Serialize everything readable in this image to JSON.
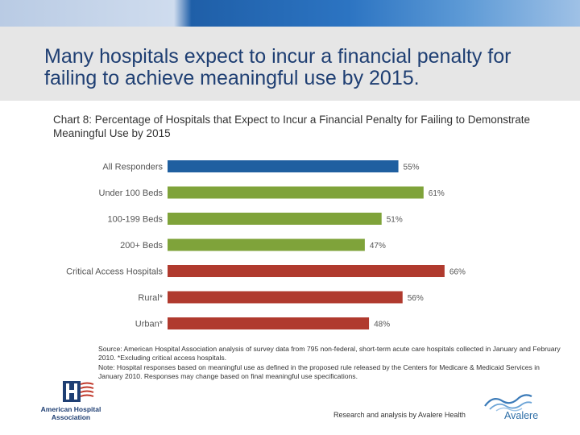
{
  "slide": {
    "title": "Many hospitals expect to incur a financial penalty for failing to achieve meaningful use by 2015.",
    "chart_caption": "Chart 8: Percentage of Hospitals that Expect to Incur a Financial Penalty for Failing to Demonstrate Meaningful Use by 2015",
    "source_note": "Source:  American Hospital Association analysis of survey data from 795 non-federal, short-term acute care hospitals collected in January and February 2010. *Excluding critical access hospitals.",
    "note": "Note: Hospital responses based on meaningful use as defined in the proposed rule released by the Centers for Medicare & Medicaid Services in January 2010. Responses may change based on final meaningful use specifications.",
    "credit": "Research and analysis by Avalere Health",
    "aha_name_line1": "American Hospital",
    "aha_name_line2": "Association",
    "avalere_name": "Avalere"
  },
  "colors": {
    "header_band": "#e6e6e6",
    "title_text": "#1f3f73",
    "all_responders": "#1f5fa0",
    "bed_size": "#7fa33a",
    "location": "#b03a2e"
  },
  "chart_data": {
    "type": "bar",
    "orientation": "horizontal",
    "title": "Chart 8: Percentage of Hospitals that Expect to Incur a Financial Penalty for Failing to Demonstrate Meaningful Use by 2015",
    "categories": [
      "All Responders",
      "Under 100 Beds",
      "100-199 Beds",
      "200+ Beds",
      "Critical Access Hospitals",
      "Rural*",
      "Urban*"
    ],
    "values": [
      55,
      61,
      51,
      47,
      66,
      56,
      48
    ],
    "value_labels": [
      "55%",
      "61%",
      "51%",
      "47%",
      "66%",
      "56%",
      "48%"
    ],
    "bar_colors": [
      "#1f5fa0",
      "#7fa33a",
      "#7fa33a",
      "#7fa33a",
      "#b03a2e",
      "#b03a2e",
      "#b03a2e"
    ],
    "xlabel": "",
    "ylabel": "",
    "xlim": [
      0,
      100
    ],
    "grid": false,
    "legend": "none"
  }
}
